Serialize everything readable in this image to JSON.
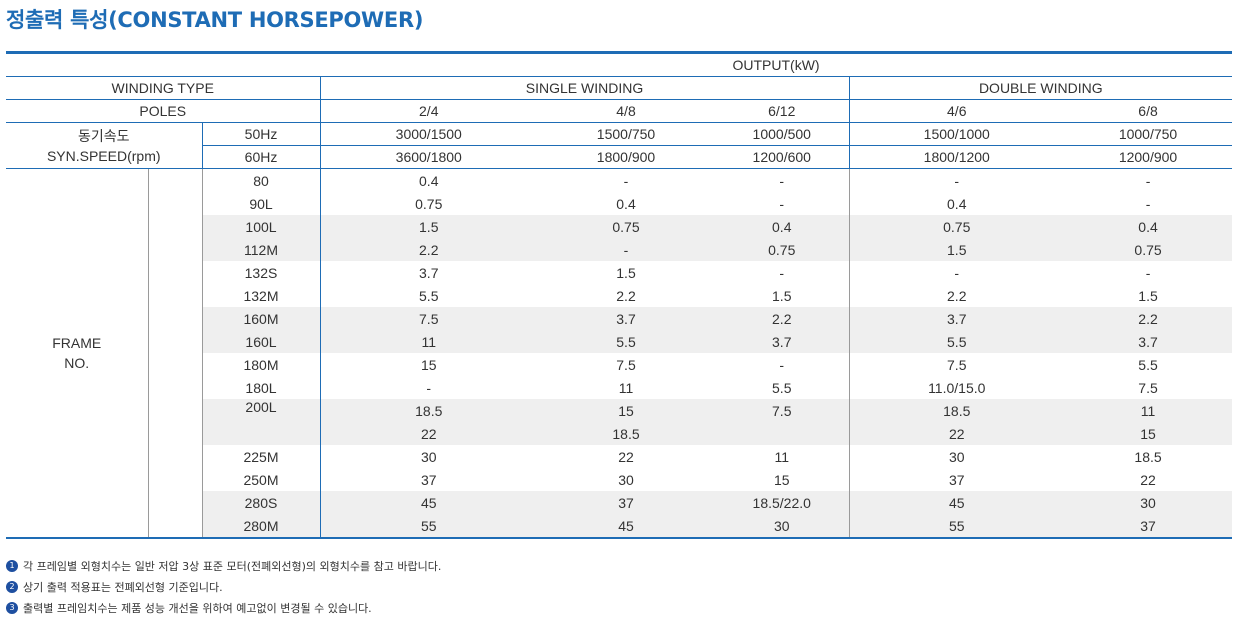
{
  "title": "정출력 특성(CONSTANT HORSEPOWER)",
  "header": {
    "output": "OUTPUT(kW)",
    "winding_type": "WINDING TYPE",
    "single_winding": "SINGLE WINDING",
    "double_winding": "DOUBLE WINDING",
    "poles_label": "POLES",
    "poles": [
      "2/4",
      "4/8",
      "6/12",
      "4/6",
      "6/8"
    ],
    "syn_label_ko": "동기속도",
    "syn_label_en": "SYN.SPEED(rpm)",
    "hz50": "50Hz",
    "hz60": "60Hz",
    "speed50": [
      "3000/1500",
      "1500/750",
      "1000/500",
      "1500/1000",
      "1000/750"
    ],
    "speed60": [
      "3600/1800",
      "1800/900",
      "1200/600",
      "1800/1200",
      "1200/900"
    ]
  },
  "frame_label": "FRAME\nNO.",
  "rows": [
    {
      "frame": "80",
      "values": [
        "0.4",
        "-",
        "-",
        "-",
        "-"
      ]
    },
    {
      "frame": "90L",
      "values": [
        "0.75",
        "0.4",
        "-",
        "0.4",
        "-"
      ]
    },
    {
      "frame": "100L",
      "values": [
        "1.5",
        "0.75",
        "0.4",
        "0.75",
        "0.4"
      ]
    },
    {
      "frame": "112M",
      "values": [
        "2.2",
        "-",
        "0.75",
        "1.5",
        "0.75"
      ]
    },
    {
      "frame": "132S",
      "values": [
        "3.7",
        "1.5",
        "-",
        "-",
        "-"
      ]
    },
    {
      "frame": "132M",
      "values": [
        "5.5",
        "2.2",
        "1.5",
        "2.2",
        "1.5"
      ]
    },
    {
      "frame": "160M",
      "values": [
        "7.5",
        "3.7",
        "2.2",
        "3.7",
        "2.2"
      ]
    },
    {
      "frame": "160L",
      "values": [
        "11",
        "5.5",
        "3.7",
        "5.5",
        "3.7"
      ]
    },
    {
      "frame": "180M",
      "values": [
        "15",
        "7.5",
        "-",
        "7.5",
        "5.5"
      ]
    },
    {
      "frame": "180L",
      "values": [
        "-",
        "11",
        "5.5",
        "11.0/15.0",
        "7.5"
      ]
    },
    {
      "frame": "200L",
      "values": [
        "18.5",
        "15",
        "7.5",
        "18.5",
        "11"
      ]
    },
    {
      "frame": "",
      "values": [
        "22",
        "18.5",
        "",
        "22",
        "15"
      ]
    },
    {
      "frame": "225M",
      "values": [
        "30",
        "22",
        "11",
        "30",
        "18.5"
      ]
    },
    {
      "frame": "250M",
      "values": [
        "37",
        "30",
        "15",
        "37",
        "22"
      ]
    },
    {
      "frame": "280S",
      "values": [
        "45",
        "37",
        "18.5/22.0",
        "45",
        "30"
      ]
    },
    {
      "frame": "280M",
      "values": [
        "55",
        "45",
        "30",
        "55",
        "37"
      ]
    }
  ],
  "notes": [
    {
      "num": "1",
      "text": "각 프레임별 외형치수는 일반 저압 3상 표준 모터(전폐외선형)의 외형치수를 참고 바랍니다."
    },
    {
      "num": "2",
      "text": "상기 출력 적용표는 전폐외선형 기준입니다."
    },
    {
      "num": "3",
      "text": "출력별 프레임치수는 제품 성능 개선을 위하여 예고없이 변경될 수 있습니다."
    }
  ],
  "colors": {
    "accent": "#1e6cb5",
    "row_shade": "#efefef",
    "note_badge": "#1e4fa0"
  }
}
